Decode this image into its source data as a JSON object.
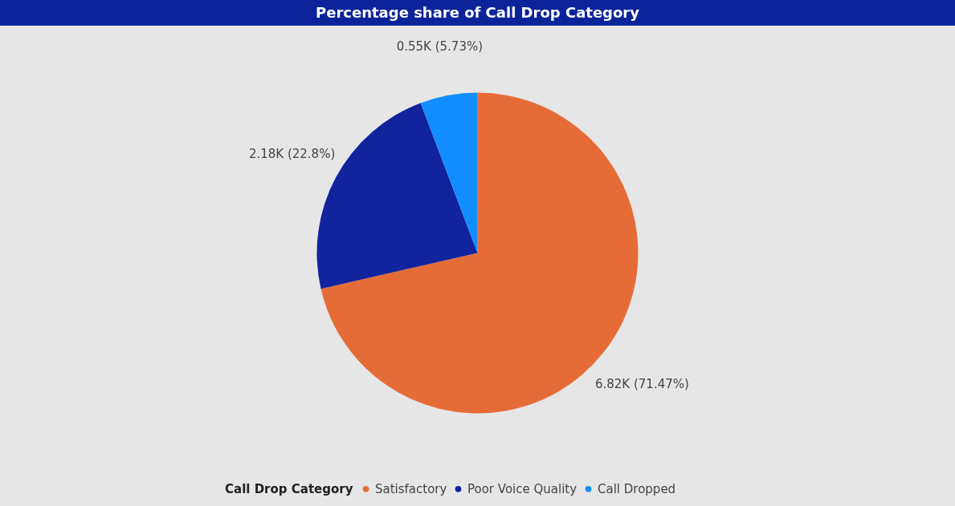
{
  "chart_data": {
    "type": "pie",
    "title": "Percentage share of Call Drop Category",
    "legend_title": "Call Drop Category",
    "categories": [
      "Satisfactory",
      "Poor Voice Quality",
      "Call Dropped"
    ],
    "values": [
      6820,
      2180,
      550
    ],
    "colors": [
      "#e66c37",
      "#12239e",
      "#118dff"
    ],
    "value_labels": [
      "6.82K (71.47%)",
      "2.18K (22.8%)",
      "0.55K (5.73%)"
    ],
    "legend": "bottom"
  }
}
